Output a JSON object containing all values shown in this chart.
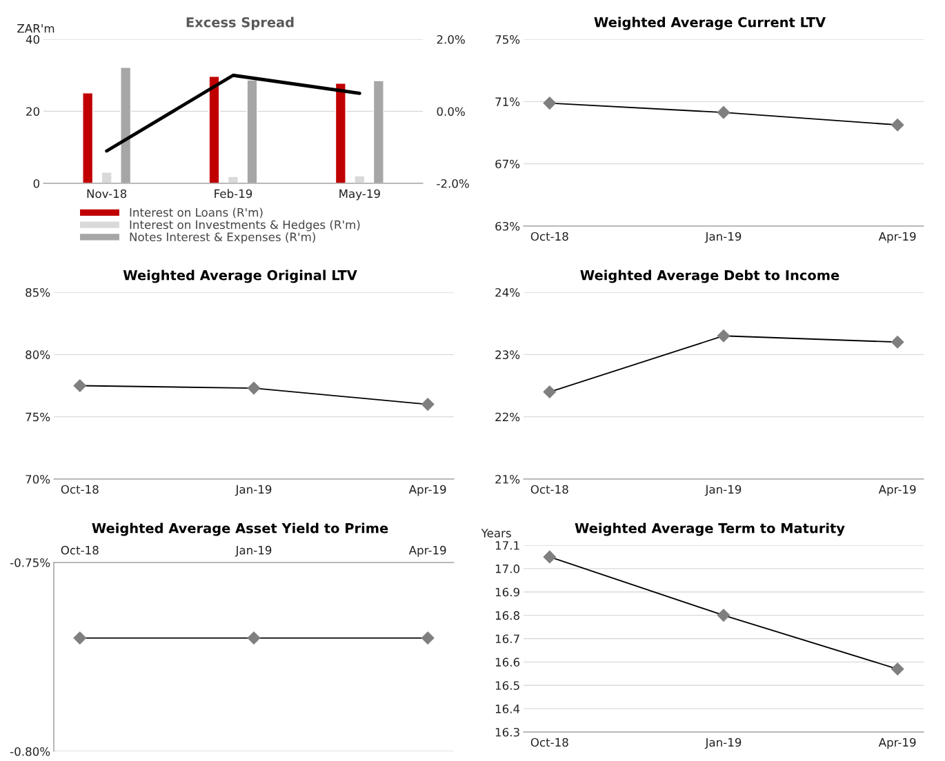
{
  "chart_data": [
    {
      "type": "bar",
      "title": "Excess Spread",
      "ylabel": "ZAR'm",
      "categories": [
        "Nov-18",
        "Feb-19",
        "May-19"
      ],
      "series": [
        {
          "name": "Interest on Loans (R'm)",
          "color": "#c00000",
          "values": [
            25.1,
            29.7,
            27.8
          ]
        },
        {
          "name": "Interest on Investments & Hedges (R'm)",
          "color": "#d9d9d9",
          "values": [
            3.1,
            1.9,
            2.1
          ]
        },
        {
          "name": "Notes Interest & Expenses (R'm)",
          "color": "#a6a6a6",
          "values": [
            32.2,
            28.7,
            28.5
          ]
        },
        {
          "type": "line",
          "axis": "y2",
          "color": "#000000",
          "values": [
            -1.1,
            1.0,
            0.5
          ]
        }
      ],
      "ylim": [
        0,
        40
      ],
      "yticks": [
        0,
        20,
        40
      ],
      "y2lim": [
        -2,
        2
      ],
      "y2ticks": [
        {
          "value": -2,
          "label": "-2.0%"
        },
        {
          "value": 0,
          "label": "0.0%"
        },
        {
          "value": 2,
          "label": "2.0%"
        }
      ],
      "grid": "y",
      "legend": "bottom"
    },
    {
      "type": "line",
      "title": "Weighted Average Current LTV",
      "categories": [
        "Oct-18",
        "Jan-19",
        "Apr-19"
      ],
      "series": [
        {
          "color": "#000000",
          "values": [
            70.9,
            70.3,
            69.5
          ]
        }
      ],
      "ylim": [
        63,
        75
      ],
      "yticks": [
        {
          "value": 63,
          "label": "63%"
        },
        {
          "value": 67,
          "label": "67%"
        },
        {
          "value": 71,
          "label": "71%"
        },
        {
          "value": 75,
          "label": "75%"
        }
      ],
      "grid": "y",
      "marker": "diamond"
    },
    {
      "type": "line",
      "title": "Weighted Average Original LTV",
      "categories": [
        "Oct-18",
        "Jan-19",
        "Apr-19"
      ],
      "series": [
        {
          "color": "#000000",
          "values": [
            77.5,
            77.3,
            76.0
          ]
        }
      ],
      "ylim": [
        70,
        85
      ],
      "yticks": [
        {
          "value": 70,
          "label": "70%"
        },
        {
          "value": 75,
          "label": "75%"
        },
        {
          "value": 80,
          "label": "80%"
        },
        {
          "value": 85,
          "label": "85%"
        }
      ],
      "grid": "y",
      "marker": "diamond"
    },
    {
      "type": "line",
      "title": "Weighted Average Debt to Income",
      "categories": [
        "Oct-18",
        "Jan-19",
        "Apr-19"
      ],
      "series": [
        {
          "color": "#000000",
          "values": [
            22.4,
            23.3,
            23.2
          ]
        }
      ],
      "ylim": [
        21,
        24
      ],
      "yticks": [
        {
          "value": 21,
          "label": "21%"
        },
        {
          "value": 22,
          "label": "22%"
        },
        {
          "value": 23,
          "label": "23%"
        },
        {
          "value": 24,
          "label": "24%"
        }
      ],
      "grid": "y",
      "marker": "diamond"
    },
    {
      "type": "line",
      "title": "Weighted Average Asset Yield to Prime",
      "categories": [
        "Oct-18",
        "Jan-19",
        "Apr-19"
      ],
      "series": [
        {
          "color": "#000000",
          "values": [
            -0.77,
            -0.77,
            -0.77
          ]
        }
      ],
      "ylim": [
        -0.8,
        -0.75
      ],
      "yticks": [
        {
          "value": -0.8,
          "label": "-0.80%"
        },
        {
          "value": -0.75,
          "label": "-0.75%"
        }
      ],
      "grid": "y",
      "marker": "diamond"
    },
    {
      "type": "line",
      "title": "Weighted Average Term to Maturity",
      "ylabel": "Years",
      "categories": [
        "Oct-18",
        "Jan-19",
        "Apr-19"
      ],
      "series": [
        {
          "color": "#000000",
          "values": [
            17.05,
            16.8,
            16.57
          ]
        }
      ],
      "ylim": [
        16.3,
        17.1
      ],
      "yticks": [
        {
          "value": 16.3,
          "label": "16.3"
        },
        {
          "value": 16.4,
          "label": "16.4"
        },
        {
          "value": 16.5,
          "label": "16.5"
        },
        {
          "value": 16.6,
          "label": "16.6"
        },
        {
          "value": 16.7,
          "label": "16.7"
        },
        {
          "value": 16.8,
          "label": "16.8"
        },
        {
          "value": 16.9,
          "label": "16.9"
        },
        {
          "value": 17.0,
          "label": "17.0"
        },
        {
          "value": 17.1,
          "label": "17.1"
        }
      ],
      "grid": "y",
      "marker": "diamond"
    }
  ]
}
